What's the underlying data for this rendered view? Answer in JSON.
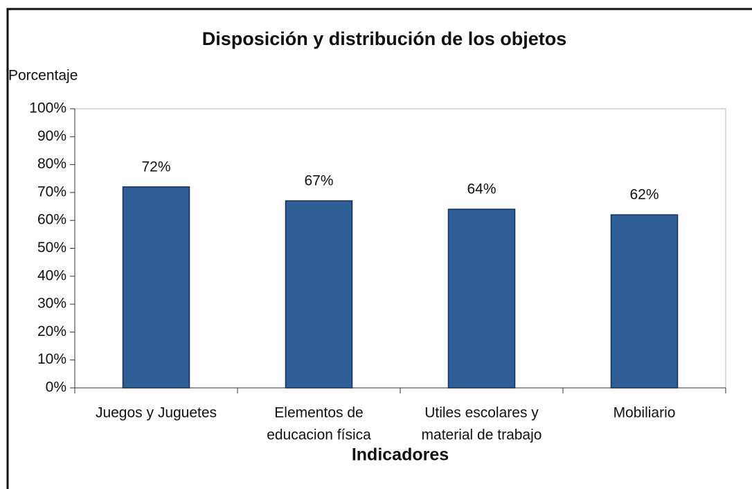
{
  "chart_data": {
    "type": "bar",
    "title": "Disposición y distribución de los objetos",
    "y_label": "Porcentaje",
    "x_label": "Indicadores",
    "categories": [
      [
        "Juegos y  Juguetes"
      ],
      [
        "Elementos de",
        "educacion física"
      ],
      [
        "Utiles escolares y",
        "material de trabajo"
      ],
      [
        "Mobiliario"
      ]
    ],
    "values": [
      72,
      67,
      64,
      62
    ],
    "value_labels": [
      "72%",
      "67%",
      "64%",
      "62%"
    ],
    "color": "#2f5d96",
    "ylim": [
      0,
      100
    ],
    "yticks": [
      {
        "value": 0,
        "label": "0%"
      },
      {
        "value": 10,
        "label": "10%"
      },
      {
        "value": 20,
        "label": "20%"
      },
      {
        "value": 30,
        "label": "30%"
      },
      {
        "value": 40,
        "label": "40%"
      },
      {
        "value": 50,
        "label": "50%"
      },
      {
        "value": 60,
        "label": "60%"
      },
      {
        "value": 70,
        "label": "70%"
      },
      {
        "value": 80,
        "label": "80%"
      },
      {
        "value": 90,
        "label": "90%"
      },
      {
        "value": 100,
        "label": "100%"
      }
    ],
    "grid": false
  }
}
